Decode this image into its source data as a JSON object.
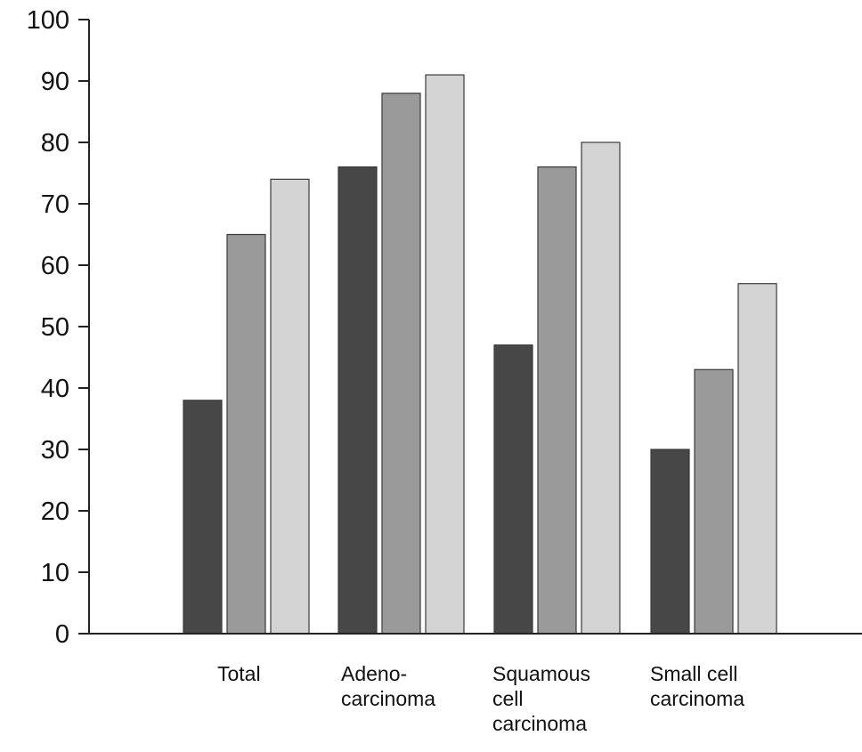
{
  "chart_data": {
    "type": "bar",
    "title": "",
    "xlabel": "",
    "ylabel": "",
    "ylim": [
      0,
      100
    ],
    "yticks": [
      0,
      10,
      20,
      30,
      40,
      50,
      60,
      70,
      80,
      90,
      100
    ],
    "grid": false,
    "legend": "none",
    "categories": [
      [
        "Total"
      ],
      [
        "Adeno-",
        "carcinoma"
      ],
      [
        "Squamous",
        "cell",
        "carcinoma"
      ],
      [
        "Small cell",
        "carcinoma"
      ]
    ],
    "series": [
      {
        "color": "#474747",
        "values": [
          38,
          76,
          47,
          30
        ]
      },
      {
        "color": "#9a9a9a",
        "values": [
          65,
          88,
          76,
          43
        ]
      },
      {
        "color": "#d4d4d4",
        "values": [
          74,
          91,
          80,
          57
        ]
      }
    ]
  }
}
